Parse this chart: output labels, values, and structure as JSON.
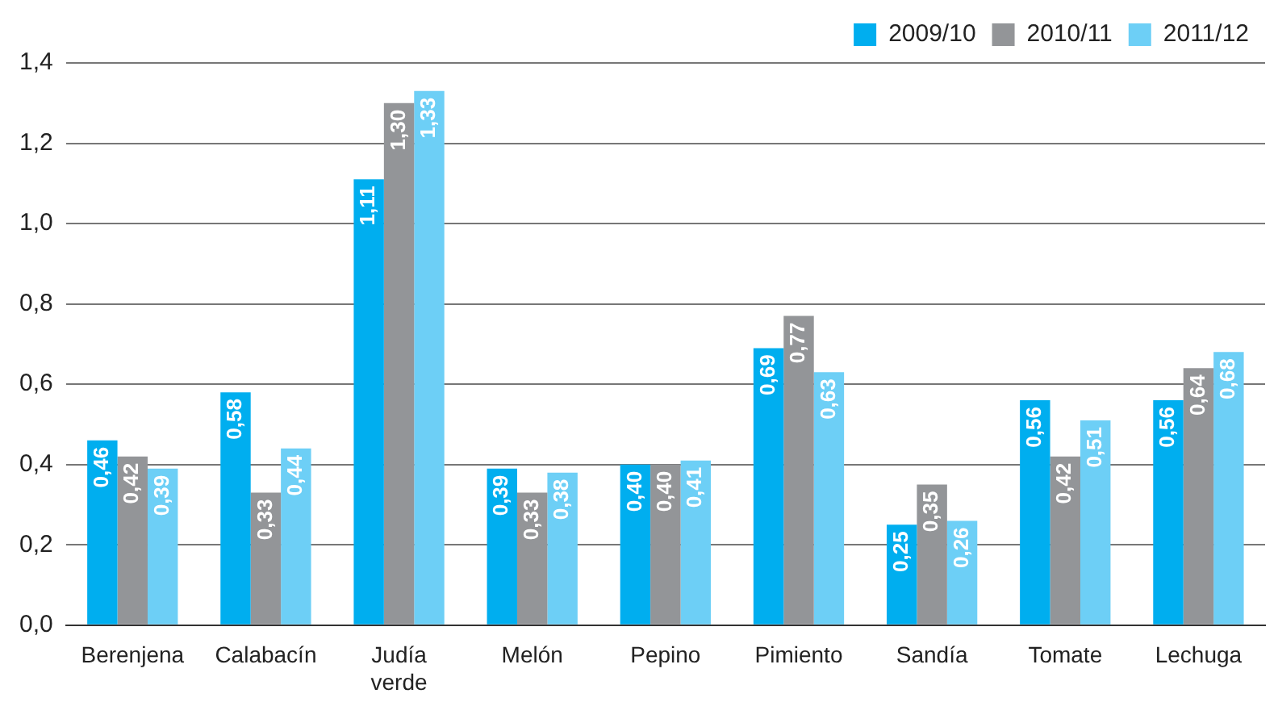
{
  "chart_data": {
    "type": "bar",
    "categories": [
      "Berenjena",
      "Calabacín",
      "Judía verde",
      "Melón",
      "Pepino",
      "Pimiento",
      "Sandía",
      "Tomate",
      "Lechuga"
    ],
    "series": [
      {
        "name": "2009/10",
        "color": "#00aeef",
        "values": [
          0.46,
          0.58,
          1.11,
          0.39,
          0.4,
          0.69,
          0.25,
          0.56,
          0.56
        ],
        "value_labels": [
          "0,46",
          "0,58",
          "1,11",
          "0,39",
          "0,40",
          "0,69",
          "0,25",
          "0,56",
          "0,56"
        ]
      },
      {
        "name": "2010/11",
        "color": "#939598",
        "values": [
          0.42,
          0.33,
          1.3,
          0.33,
          0.4,
          0.77,
          0.35,
          0.42,
          0.64
        ],
        "value_labels": [
          "0,42",
          "0,33",
          "1,30",
          "0,33",
          "0,40",
          "0,77",
          "0,35",
          "0,42",
          "0,64"
        ]
      },
      {
        "name": "2011/12",
        "color": "#6dcff6",
        "values": [
          0.39,
          0.44,
          1.33,
          0.38,
          0.41,
          0.63,
          0.26,
          0.51,
          0.68
        ],
        "value_labels": [
          "0,39",
          "0,44",
          "1,33",
          "0,38",
          "0,41",
          "0,63",
          "0,26",
          "0,51",
          "0,68"
        ]
      }
    ],
    "ylim": [
      0,
      1.4
    ],
    "yticks": [
      {
        "value": 0,
        "label": "0,0"
      },
      {
        "value": 0.2,
        "label": "0,2"
      },
      {
        "value": 0.4,
        "label": "0,4"
      },
      {
        "value": 0.6,
        "label": "0,6"
      },
      {
        "value": 0.8,
        "label": "0,8"
      },
      {
        "value": 1.0,
        "label": "1,0"
      },
      {
        "value": 1.2,
        "label": "1,2"
      },
      {
        "value": 1.4,
        "label": "1,4"
      }
    ],
    "grid": "y",
    "legend": "top right"
  }
}
